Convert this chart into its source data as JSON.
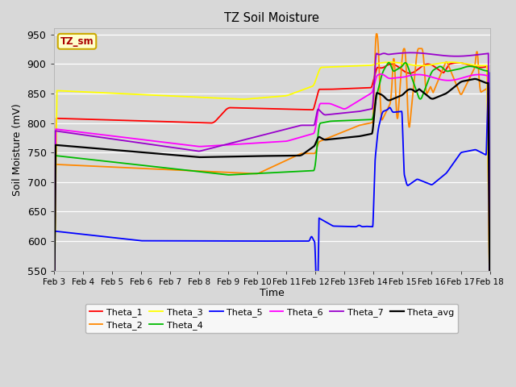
{
  "title": "TZ Soil Moisture",
  "xlabel": "Time",
  "ylabel": "Soil Moisture (mV)",
  "ylim": [
    550,
    960
  ],
  "yticks": [
    550,
    600,
    650,
    700,
    750,
    800,
    850,
    900,
    950
  ],
  "xtick_labels": [
    "Feb 3",
    "Feb 4",
    "Feb 5",
    "Feb 6",
    "Feb 7",
    "Feb 8",
    "Feb 9",
    "Feb 10",
    "Feb 11",
    "Feb 12",
    "Feb 13",
    "Feb 14",
    "Feb 15",
    "Feb 16",
    "Feb 17",
    "Feb 18"
  ],
  "bg_color": "#d8d8d8",
  "grid_color": "#ffffff",
  "legend_face": "#ffffcc",
  "legend_edge": "#ccaa00",
  "legend_text_color": "#aa0000",
  "colors": {
    "Theta_1": "#ff0000",
    "Theta_2": "#ff8800",
    "Theta_3": "#ffff00",
    "Theta_4": "#00bb00",
    "Theta_5": "#0000ff",
    "Theta_6": "#ff00ff",
    "Theta_7": "#9900cc",
    "Theta_avg": "#000000"
  },
  "lw": 1.3
}
